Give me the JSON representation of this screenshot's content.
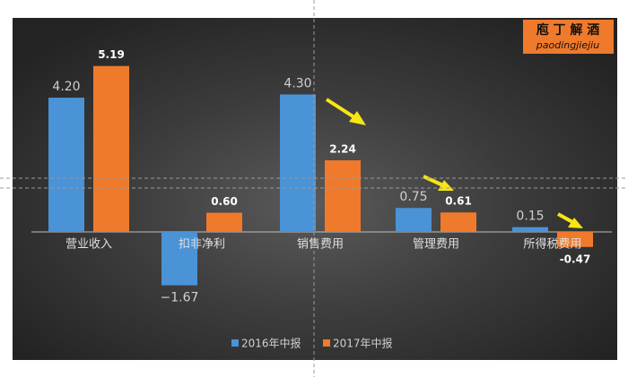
{
  "chart_data": {
    "type": "bar",
    "categories": [
      "营业收入",
      "扣非净利",
      "销售费用",
      "管理费用",
      "所得税费用"
    ],
    "series": [
      {
        "name": "2016年中报",
        "color": "#4a93d6",
        "values": [
          4.2,
          -1.67,
          4.3,
          0.75,
          0.15
        ],
        "value_labels": [
          "4.20",
          "−1.67",
          "4.30",
          "0.75",
          "0.15"
        ]
      },
      {
        "name": "2017年中报",
        "color": "#f07a2c",
        "values": [
          5.19,
          0.6,
          2.24,
          0.61,
          -0.47
        ],
        "value_labels": [
          "5.19",
          "0.60",
          "2.24",
          "0.61",
          "-0.47"
        ]
      }
    ],
    "legend": "bottom"
  },
  "logo": {
    "title": "庖 丁 解 酒",
    "subtitle": "paodingjiejiu"
  }
}
